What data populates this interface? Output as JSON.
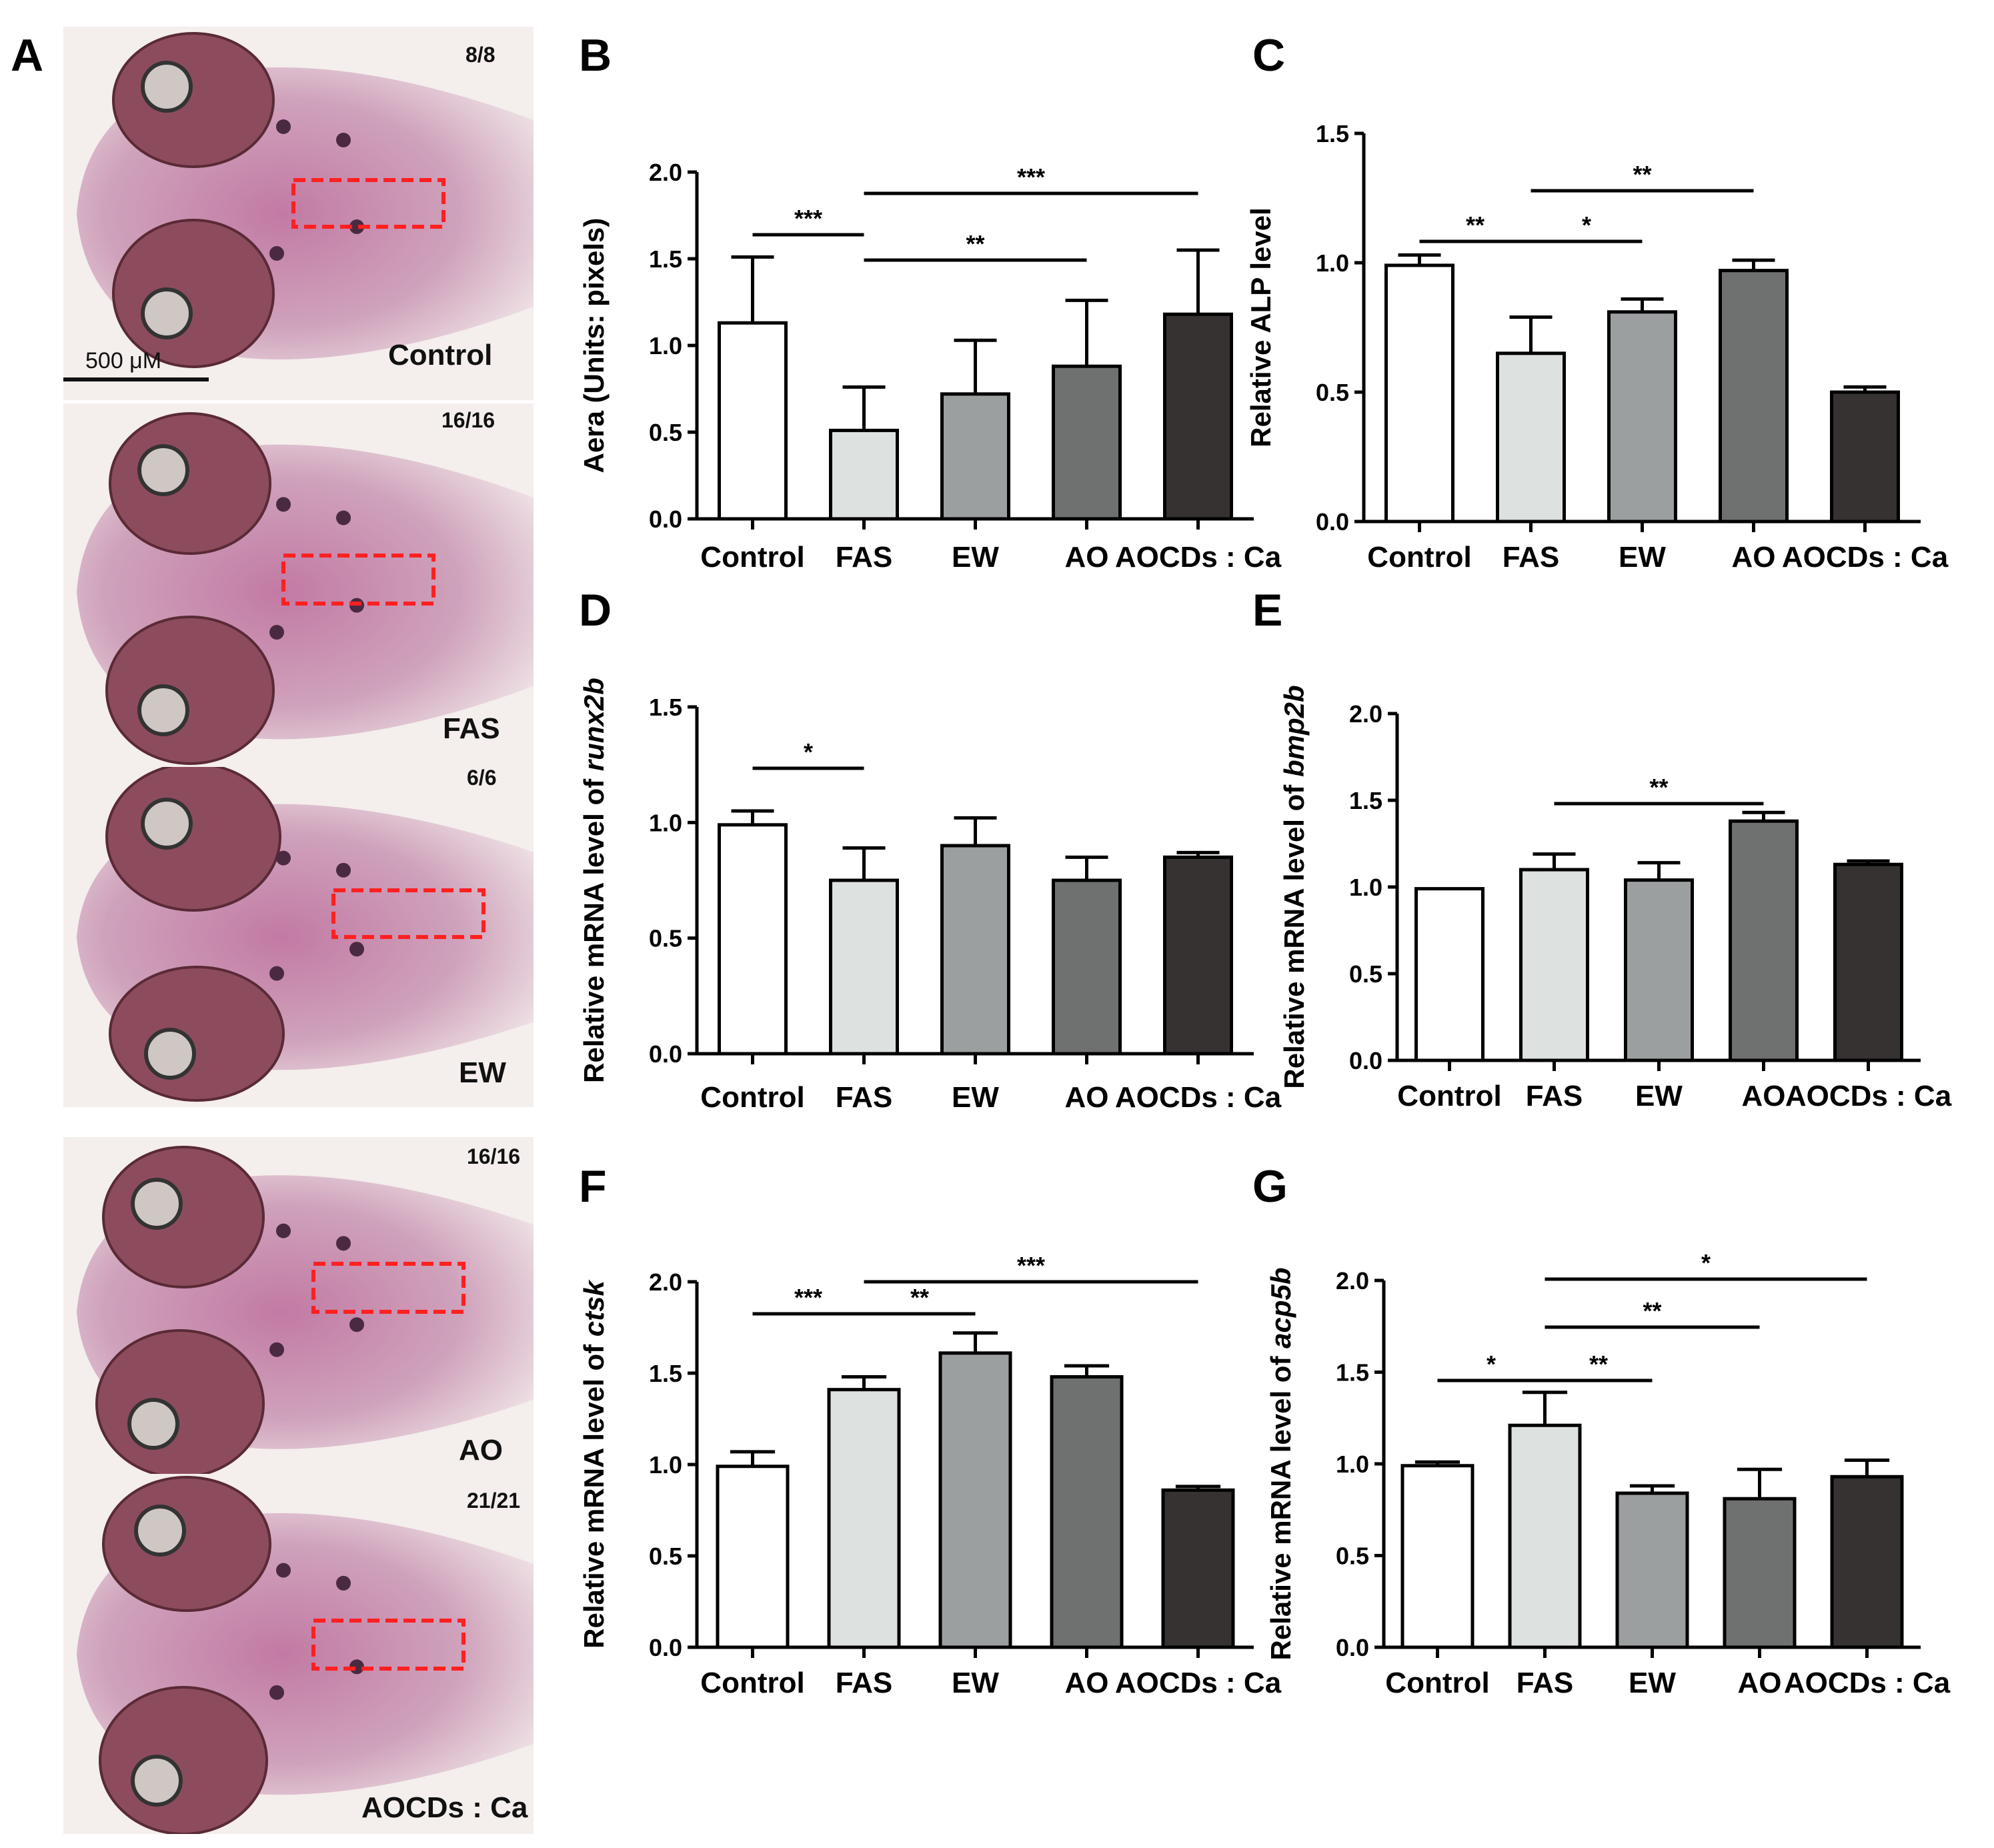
{
  "panel_labels": {
    "A": "A",
    "B": "B",
    "C": "C",
    "D": "D",
    "E": "E",
    "F": "F",
    "G": "G"
  },
  "panel_a": {
    "scale_bar_label": "500 μM",
    "images": [
      {
        "label": "Control",
        "count": "8/8"
      },
      {
        "label": "FAS",
        "count": "16/16"
      },
      {
        "label": "EW",
        "count": "6/6"
      },
      {
        "label": "AO",
        "count": "16/16"
      },
      {
        "label": "AOCDs : Ca",
        "count": "21/21"
      }
    ]
  },
  "colors": {
    "bars": [
      "#ffffff",
      "#dde1e0",
      "#9c9f9f",
      "#6f7070",
      "#353231"
    ],
    "axis": "#000000",
    "roi_dash": "#ff2020",
    "tissue_bg": "#c98fb1",
    "eye": "#8d4c5e"
  },
  "chart_data": [
    {
      "id": "B",
      "type": "bar",
      "ylabel": "Aera (Units: pixels)",
      "categories": [
        "Control",
        "FAS",
        "EW",
        "AO",
        "AOCDs : Ca"
      ],
      "values": [
        1.13,
        0.51,
        0.72,
        0.88,
        1.18
      ],
      "errors": [
        0.38,
        0.25,
        0.31,
        0.38,
        0.37
      ],
      "ylim": [
        0,
        2.0
      ],
      "yticks": [
        "0.0",
        "0.5",
        "1.0",
        "1.5",
        "2.0"
      ],
      "significance": [
        {
          "from": 0,
          "to": 1,
          "label": "***"
        },
        {
          "from": 1,
          "to": 3,
          "label": "**"
        },
        {
          "from": 1,
          "to": 4,
          "label": "***"
        }
      ]
    },
    {
      "id": "C",
      "type": "bar",
      "ylabel": "Relative ALP level",
      "categories": [
        "Control",
        "FAS",
        "EW",
        "AO",
        "AOCDs : Ca"
      ],
      "values": [
        0.99,
        0.65,
        0.81,
        0.97,
        0.5
      ],
      "errors": [
        0.04,
        0.14,
        0.05,
        0.04,
        0.02
      ],
      "ylim": [
        0,
        1.5
      ],
      "yticks": [
        "0.0",
        "0.5",
        "1.0",
        "1.5"
      ],
      "significance": [
        {
          "from": 0,
          "to": 1,
          "label": "**"
        },
        {
          "from": 1,
          "to": 2,
          "label": "*"
        },
        {
          "from": 1,
          "to": 3,
          "label": "**"
        }
      ]
    },
    {
      "id": "D",
      "type": "bar",
      "ylabel_prefix": "Relative mRNA level of ",
      "ylabel_gene": "runx2b",
      "categories": [
        "Control",
        "FAS",
        "EW",
        "AO",
        "AOCDs : Ca"
      ],
      "values": [
        0.99,
        0.75,
        0.9,
        0.75,
        0.85
      ],
      "errors": [
        0.06,
        0.14,
        0.12,
        0.1,
        0.02
      ],
      "ylim": [
        0,
        1.5
      ],
      "yticks": [
        "0.0",
        "0.5",
        "1.0",
        "1.5"
      ],
      "significance": [
        {
          "from": 0,
          "to": 1,
          "label": "*"
        }
      ]
    },
    {
      "id": "E",
      "type": "bar",
      "ylabel_prefix": "Relative mRNA level of ",
      "ylabel_gene": "bmp2b",
      "categories": [
        "Control",
        "FAS",
        "EW",
        "AO",
        "AOCDs : Ca"
      ],
      "values": [
        0.99,
        1.1,
        1.04,
        1.38,
        1.13
      ],
      "errors": [
        0.0,
        0.09,
        0.1,
        0.05,
        0.02
      ],
      "ylim": [
        0,
        2.0
      ],
      "yticks": [
        "0.0",
        "0.5",
        "1.0",
        "1.5",
        "2.0"
      ],
      "significance": [
        {
          "from": 1,
          "to": 3,
          "label": "**"
        }
      ]
    },
    {
      "id": "F",
      "type": "bar",
      "ylabel_prefix": "Relative mRNA level of ",
      "ylabel_gene": "ctsk",
      "categories": [
        "Control",
        "FAS",
        "EW",
        "AO",
        "AOCDs : Ca"
      ],
      "values": [
        0.99,
        1.41,
        1.61,
        1.48,
        0.86
      ],
      "errors": [
        0.08,
        0.07,
        0.11,
        0.06,
        0.02
      ],
      "ylim": [
        0,
        2.0
      ],
      "yticks": [
        "0.0",
        "0.5",
        "1.0",
        "1.5",
        "2.0"
      ],
      "significance": [
        {
          "from": 0,
          "to": 1,
          "label": "***"
        },
        {
          "from": 1,
          "to": 2,
          "label": "**"
        },
        {
          "from": 1,
          "to": 4,
          "label": "***"
        }
      ]
    },
    {
      "id": "G",
      "type": "bar",
      "ylabel_prefix": "Relative mRNA level of ",
      "ylabel_gene": "acp5b",
      "categories": [
        "Control",
        "FAS",
        "EW",
        "AO",
        "AOCDs : Ca"
      ],
      "values": [
        0.99,
        1.21,
        0.84,
        0.81,
        0.93
      ],
      "errors": [
        0.02,
        0.18,
        0.04,
        0.16,
        0.09
      ],
      "ylim": [
        0,
        2.0
      ],
      "yticks": [
        "0.0",
        "0.5",
        "1.0",
        "1.5",
        "2.0"
      ],
      "significance": [
        {
          "from": 0,
          "to": 1,
          "label": "*"
        },
        {
          "from": 1,
          "to": 2,
          "label": "**"
        },
        {
          "from": 1,
          "to": 3,
          "label": "**"
        },
        {
          "from": 1,
          "to": 4,
          "label": "*"
        }
      ]
    }
  ]
}
